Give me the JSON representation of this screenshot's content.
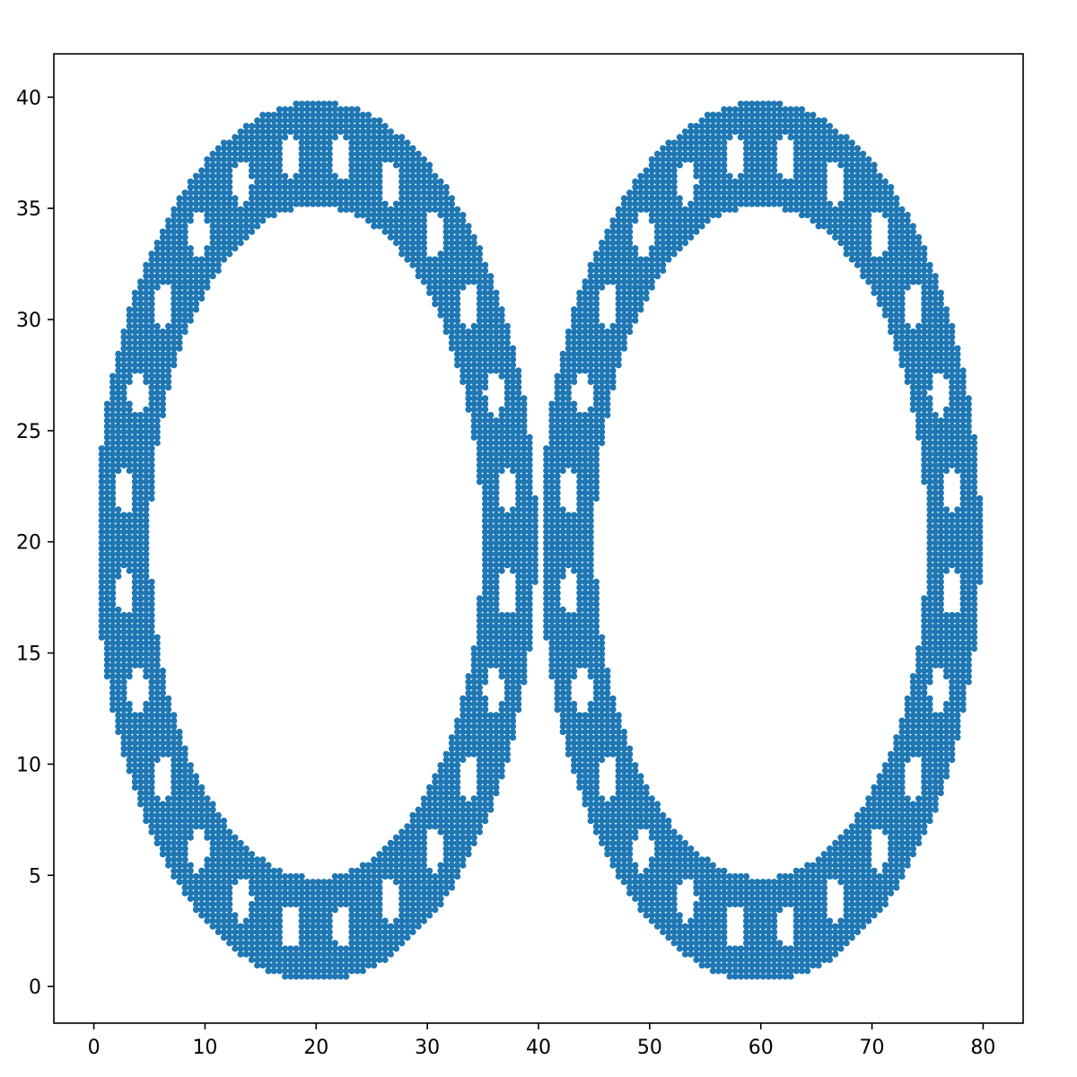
{
  "chart_data": {
    "type": "scatter",
    "title": "",
    "xlabel": "",
    "ylabel": "",
    "xlim": [
      -3.6,
      83.6
    ],
    "ylim": [
      -1.65,
      41.95
    ],
    "x_ticks": [
      0,
      10,
      20,
      30,
      40,
      50,
      60,
      70,
      80
    ],
    "y_ticks": [
      0,
      5,
      10,
      15,
      20,
      25,
      30,
      35,
      40
    ],
    "grid": false,
    "legend": "none",
    "marker_color": "#1f77b4",
    "series": [
      {
        "shape": "elliptical ring of densely packed points with periodic oval gaps",
        "center": [
          20,
          20
        ],
        "outer_radii": [
          19.8,
          19.8
        ],
        "inner_radii": [
          14.9,
          15.1
        ],
        "gap_count": 24
      },
      {
        "shape": "elliptical ring of densely packed points with periodic oval gaps",
        "center": [
          60,
          20
        ],
        "outer_radii": [
          19.8,
          19.8
        ],
        "inner_radii": [
          14.9,
          15.1
        ],
        "gap_count": 24
      }
    ],
    "point_spacing": [
      0.5,
      0.25
    ]
  }
}
